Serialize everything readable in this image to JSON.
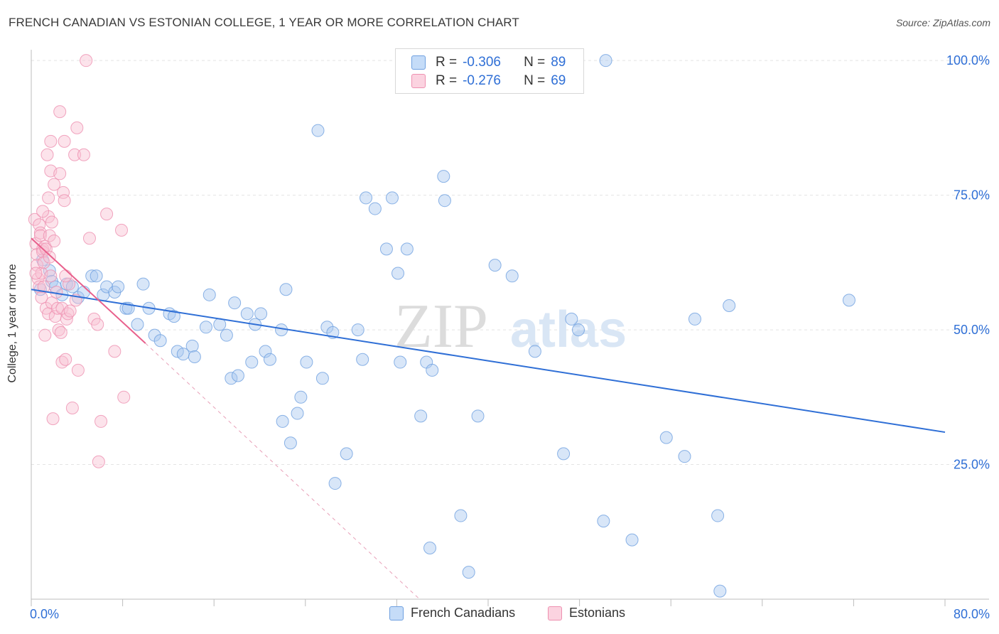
{
  "title": "FRENCH CANADIAN VS ESTONIAN COLLEGE, 1 YEAR OR MORE CORRELATION CHART",
  "source": "Source: ZipAtlas.com",
  "watermark": {
    "zip": "ZIP",
    "atlas": "atlas"
  },
  "legend": {
    "rows": [
      {
        "r_label": "R =",
        "r_value": "-0.306",
        "n_label": "N =",
        "n_value": "89",
        "color": "#a8c8f0",
        "stroke": "#6fa0e0"
      },
      {
        "r_label": "R =",
        "r_value": "-0.276",
        "n_label": "N =",
        "n_value": "69",
        "color": "#f8c0d2",
        "stroke": "#ee90b0"
      }
    ],
    "bottom": [
      {
        "label": "French Canadians",
        "color": "#c5dcf8",
        "stroke": "#6fa0e0"
      },
      {
        "label": "Estonians",
        "color": "#fbd3e0",
        "stroke": "#ee90b0"
      }
    ]
  },
  "chart_data": {
    "type": "scatter",
    "xlabel": "",
    "ylabel": "College, 1 year or more",
    "xlim": [
      0,
      80
    ],
    "ylim": [
      0,
      102
    ],
    "x_tick_labels": [
      "0.0%",
      "80.0%"
    ],
    "y_tick_labels": [
      "25.0%",
      "50.0%",
      "75.0%",
      "100.0%"
    ],
    "y_ticks": [
      25,
      50,
      75,
      100
    ],
    "series": [
      {
        "name": "French Canadians",
        "color": "#6fa0e0",
        "fill": "#a8c8f0",
        "trend": {
          "x0": 0,
          "y0": 57.5,
          "x1": 80,
          "y1": 31
        },
        "points": [
          [
            0.8,
            57.5
          ],
          [
            1.0,
            63
          ],
          [
            1.6,
            61
          ],
          [
            1.8,
            59
          ],
          [
            2.1,
            58
          ],
          [
            2.7,
            56.5
          ],
          [
            3.1,
            58.5
          ],
          [
            3.6,
            58
          ],
          [
            4.1,
            56
          ],
          [
            4.6,
            57
          ],
          [
            5.3,
            60
          ],
          [
            5.7,
            60
          ],
          [
            6.3,
            56.5
          ],
          [
            6.6,
            58
          ],
          [
            7.3,
            57
          ],
          [
            7.6,
            58
          ],
          [
            8.3,
            54
          ],
          [
            8.5,
            54
          ],
          [
            9.3,
            51
          ],
          [
            9.8,
            58.5
          ],
          [
            10.3,
            54
          ],
          [
            10.8,
            49
          ],
          [
            11.3,
            48
          ],
          [
            12.1,
            53
          ],
          [
            12.5,
            52.5
          ],
          [
            12.8,
            46
          ],
          [
            13.3,
            45.5
          ],
          [
            14.1,
            47
          ],
          [
            14.3,
            45
          ],
          [
            15.3,
            50.5
          ],
          [
            15.6,
            56.5
          ],
          [
            16.5,
            51
          ],
          [
            17.1,
            49
          ],
          [
            17.5,
            41
          ],
          [
            17.8,
            55
          ],
          [
            18.1,
            41.5
          ],
          [
            18.9,
            53
          ],
          [
            19.3,
            44
          ],
          [
            19.6,
            51
          ],
          [
            20.1,
            53
          ],
          [
            20.5,
            46
          ],
          [
            20.9,
            44.5
          ],
          [
            21.9,
            50
          ],
          [
            22.0,
            33
          ],
          [
            22.3,
            57.5
          ],
          [
            22.7,
            29
          ],
          [
            23.3,
            34.5
          ],
          [
            23.6,
            37.5
          ],
          [
            24.1,
            44
          ],
          [
            25.1,
            87
          ],
          [
            25.5,
            41
          ],
          [
            25.9,
            50.5
          ],
          [
            26.4,
            49.5
          ],
          [
            26.6,
            21.5
          ],
          [
            27.6,
            27
          ],
          [
            28.6,
            50
          ],
          [
            29.0,
            44.5
          ],
          [
            29.3,
            74.5
          ],
          [
            30.1,
            72.5
          ],
          [
            31.1,
            65
          ],
          [
            31.6,
            74.5
          ],
          [
            32.1,
            60.5
          ],
          [
            32.3,
            44
          ],
          [
            32.9,
            65
          ],
          [
            34.1,
            34
          ],
          [
            34.6,
            44
          ],
          [
            34.9,
            9.5
          ],
          [
            35.1,
            42.5
          ],
          [
            36.1,
            78.5
          ],
          [
            36.2,
            74
          ],
          [
            37.6,
            15.5
          ],
          [
            38.3,
            5
          ],
          [
            39.1,
            34
          ],
          [
            40.6,
            62
          ],
          [
            42.1,
            60
          ],
          [
            44.1,
            46
          ],
          [
            46.6,
            27
          ],
          [
            47.3,
            52
          ],
          [
            47.9,
            50
          ],
          [
            50.1,
            14.5
          ],
          [
            50.3,
            100
          ],
          [
            52.6,
            11
          ],
          [
            55.6,
            30
          ],
          [
            57.2,
            26.5
          ],
          [
            58.1,
            52
          ],
          [
            60.1,
            15.5
          ],
          [
            60.3,
            1.5
          ],
          [
            71.6,
            55.5
          ],
          [
            61.1,
            54.5
          ]
        ]
      },
      {
        "name": "Estonians",
        "color": "#ee90b0",
        "fill": "#f8c0d2",
        "trend": {
          "x0": 0,
          "y0": 67,
          "x1": 10,
          "y1": 47.5
        },
        "trend_dashed": {
          "x0": 10,
          "y0": 47.5,
          "x1": 34,
          "y1": 0
        },
        "points": [
          [
            0.3,
            70.5
          ],
          [
            0.4,
            66
          ],
          [
            0.5,
            64
          ],
          [
            0.5,
            62
          ],
          [
            0.6,
            59.5
          ],
          [
            0.7,
            58
          ],
          [
            0.7,
            69.5
          ],
          [
            0.8,
            68
          ],
          [
            0.8,
            67.5
          ],
          [
            0.9,
            60.5
          ],
          [
            1.0,
            65
          ],
          [
            1.0,
            64.5
          ],
          [
            1.1,
            62.5
          ],
          [
            1.1,
            58
          ],
          [
            1.2,
            65.5
          ],
          [
            1.3,
            65
          ],
          [
            1.3,
            54
          ],
          [
            1.4,
            82.5
          ],
          [
            1.5,
            74.5
          ],
          [
            1.5,
            71
          ],
          [
            1.5,
            53
          ],
          [
            1.6,
            67.5
          ],
          [
            1.7,
            85
          ],
          [
            1.7,
            79.5
          ],
          [
            1.7,
            60
          ],
          [
            1.8,
            70
          ],
          [
            1.8,
            55
          ],
          [
            1.9,
            33.5
          ],
          [
            2.0,
            77
          ],
          [
            2.1,
            52.5
          ],
          [
            2.3,
            54
          ],
          [
            2.4,
            50
          ],
          [
            2.5,
            90.5
          ],
          [
            2.5,
            79
          ],
          [
            2.6,
            49.5
          ],
          [
            2.7,
            54
          ],
          [
            2.7,
            44
          ],
          [
            2.8,
            75.5
          ],
          [
            2.9,
            85
          ],
          [
            2.9,
            74
          ],
          [
            3.0,
            44.5
          ],
          [
            3.1,
            52
          ],
          [
            3.2,
            53
          ],
          [
            3.4,
            53.5
          ],
          [
            3.6,
            35.5
          ],
          [
            3.8,
            82.5
          ],
          [
            3.9,
            55.5
          ],
          [
            4.0,
            87.5
          ],
          [
            4.1,
            42.5
          ],
          [
            4.6,
            82.5
          ],
          [
            4.8,
            100
          ],
          [
            5.1,
            67
          ],
          [
            5.5,
            52
          ],
          [
            5.8,
            51
          ],
          [
            5.9,
            25.5
          ],
          [
            6.1,
            33
          ],
          [
            6.6,
            71.5
          ],
          [
            7.3,
            46
          ],
          [
            7.9,
            68.5
          ],
          [
            8.1,
            37.5
          ],
          [
            1.2,
            49
          ],
          [
            0.9,
            56
          ],
          [
            2.2,
            57
          ],
          [
            3.3,
            58.5
          ],
          [
            1.6,
            63.5
          ],
          [
            0.4,
            60.5
          ],
          [
            2.0,
            66.5
          ],
          [
            1.0,
            72
          ],
          [
            3.0,
            60
          ]
        ]
      }
    ]
  }
}
